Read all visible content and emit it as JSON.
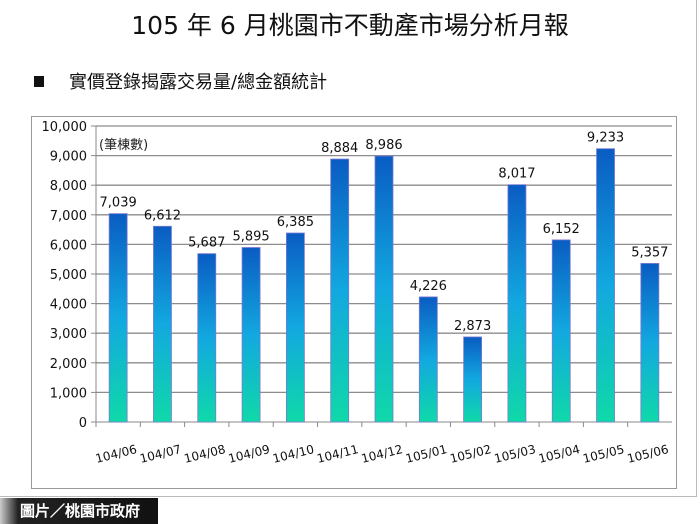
{
  "title": "105 年 6 月桃園市不動產市場分析月報",
  "bullet": "實價登錄揭露交易量/總金額統計",
  "caption": "圖片／桃園市政府",
  "chart_data": {
    "type": "bar",
    "unit_label": "(筆棟數)",
    "categories": [
      "104/06",
      "104/07",
      "104/08",
      "104/09",
      "104/10",
      "104/11",
      "104/12",
      "105/01",
      "105/02",
      "105/03",
      "105/04",
      "105/05",
      "105/06"
    ],
    "values": [
      7039,
      6612,
      5687,
      5895,
      6385,
      8884,
      8986,
      4226,
      2873,
      8017,
      6152,
      9233,
      5357
    ],
    "data_labels": [
      "7,039",
      "6,612",
      "5,687",
      "5,895",
      "6,385",
      "8,884",
      "8,986",
      "4,226",
      "2,873",
      "8,017",
      "6,152",
      "9,233",
      "5,357"
    ],
    "ylim": [
      0,
      10000
    ],
    "yticks": [
      "0",
      "1,000",
      "2,000",
      "3,000",
      "4,000",
      "5,000",
      "6,000",
      "7,000",
      "8,000",
      "9,000",
      "10,000"
    ],
    "grid": true,
    "colors": {
      "bar_top": "#0a5cc2",
      "bar_bottom": "#0fd9a8",
      "grid": "#8c8c8c"
    }
  }
}
